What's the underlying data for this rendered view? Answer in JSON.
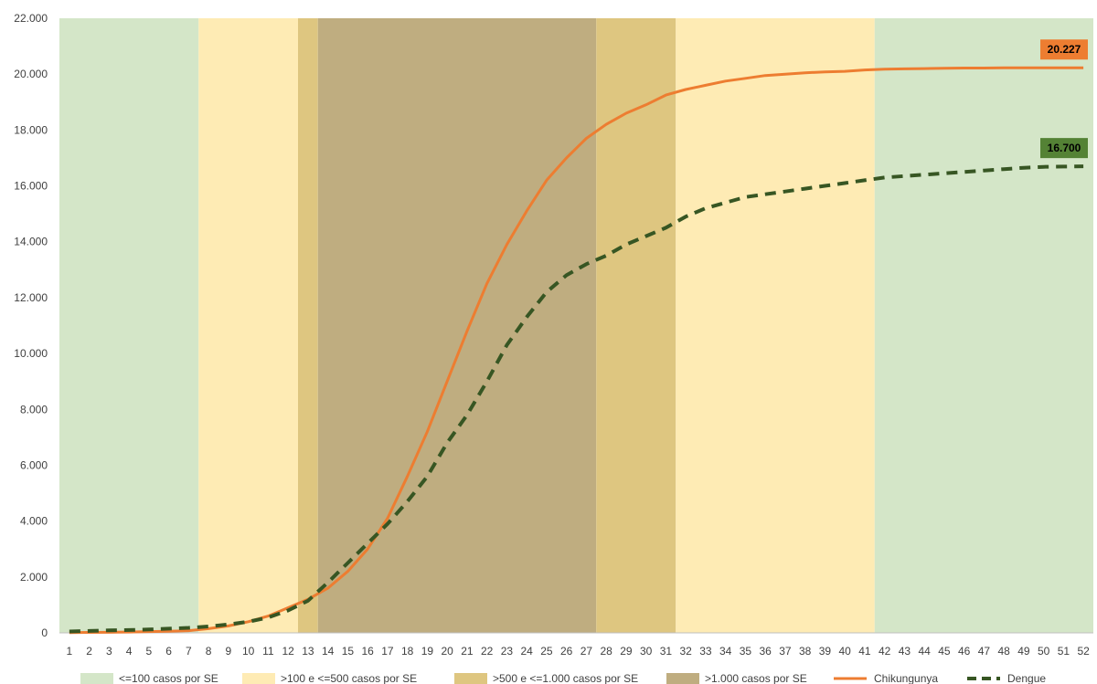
{
  "chart_data": {
    "type": "line",
    "title": "",
    "xlabel": "",
    "ylabel": "",
    "x": [
      1,
      2,
      3,
      4,
      5,
      6,
      7,
      8,
      9,
      10,
      11,
      12,
      13,
      14,
      15,
      16,
      17,
      18,
      19,
      20,
      21,
      22,
      23,
      24,
      25,
      26,
      27,
      28,
      29,
      30,
      31,
      32,
      33,
      34,
      35,
      36,
      37,
      38,
      39,
      40,
      41,
      42,
      43,
      44,
      45,
      46,
      47,
      48,
      49,
      50,
      51,
      52
    ],
    "ylim": [
      0,
      22000
    ],
    "yticks": [
      0,
      2000,
      4000,
      6000,
      8000,
      10000,
      12000,
      14000,
      16000,
      18000,
      20000,
      22000
    ],
    "ytick_labels": [
      "0",
      "2.000",
      "4.000",
      "6.000",
      "8.000",
      "10.000",
      "12.000",
      "14.000",
      "16.000",
      "18.000",
      "20.000",
      "22.000"
    ],
    "grid": false,
    "legend_position": "bottom",
    "bands": [
      {
        "from": 1,
        "to": 7,
        "category": 0
      },
      {
        "from": 8,
        "to": 12,
        "category": 1
      },
      {
        "from": 13,
        "to": 13,
        "category": 2
      },
      {
        "from": 14,
        "to": 27,
        "category": 3
      },
      {
        "from": 28,
        "to": 31,
        "category": 2
      },
      {
        "from": 32,
        "to": 41,
        "category": 1
      },
      {
        "from": 42,
        "to": 52,
        "category": 0
      }
    ],
    "band_categories": [
      {
        "name": "<=100 casos por SE",
        "color": "#d4e6c8"
      },
      {
        "name": ">100 e  <=500 casos por SE",
        "color": "#feebb4"
      },
      {
        "name": ">500 e <=1.000 casos por SE",
        "color": "#dec680"
      },
      {
        "name": ">1.000 casos por SE",
        "color": "#bfad80"
      }
    ],
    "series": [
      {
        "name": "Chikungunya",
        "color": "#ed7d31",
        "dash": "solid",
        "values": [
          10,
          15,
          20,
          30,
          45,
          60,
          80,
          150,
          250,
          400,
          600,
          900,
          1200,
          1600,
          2200,
          3000,
          4100,
          5600,
          7200,
          9000,
          10800,
          12500,
          13900,
          15100,
          16200,
          17000,
          17700,
          18200,
          18600,
          18900,
          19250,
          19450,
          19600,
          19750,
          19850,
          19950,
          20000,
          20050,
          20080,
          20100,
          20150,
          20180,
          20190,
          20200,
          20210,
          20220,
          20220,
          20225,
          20225,
          20227,
          20227,
          20227
        ],
        "end_label": "20.227",
        "label_bg": "#ed7d31",
        "label_color": "#000000"
      },
      {
        "name": "Dengue",
        "color": "#375623",
        "dash": "dashed",
        "values": [
          50,
          70,
          90,
          100,
          120,
          150,
          180,
          230,
          300,
          400,
          550,
          800,
          1150,
          1800,
          2500,
          3200,
          3900,
          4700,
          5600,
          6800,
          7800,
          9000,
          10300,
          11300,
          12200,
          12800,
          13200,
          13500,
          13900,
          14200,
          14500,
          14900,
          15200,
          15400,
          15600,
          15700,
          15800,
          15900,
          16000,
          16100,
          16200,
          16300,
          16350,
          16400,
          16450,
          16500,
          16550,
          16600,
          16650,
          16680,
          16690,
          16700
        ],
        "end_label": "16.700",
        "label_bg": "#548235",
        "label_color": "#000000"
      }
    ]
  }
}
